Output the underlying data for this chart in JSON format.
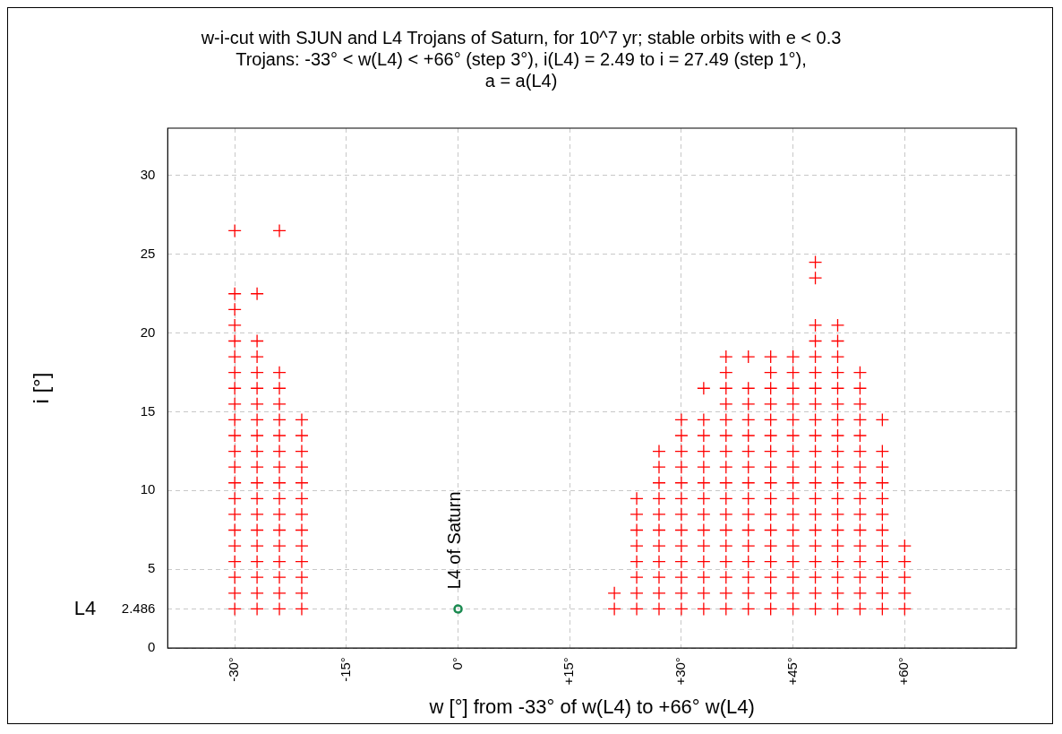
{
  "chart_data": {
    "type": "scatter",
    "title": "w-i-cut with SJUN and L4 Trojans of Saturn, for 10^7 yr; stable orbits with e < 0.3\nTrojans: -33° < w(L4) < +66° (step 3°), i(L4) = 2.49 to i = 27.49 (step 1°),\na = a(L4)",
    "xlabel": "w [°] from -33° of w(L4) to +66° w(L4)",
    "ylabel": "i [°]",
    "xlim": [
      -39,
      75
    ],
    "xticks": [
      {
        "value": -30,
        "label": "-30°"
      },
      {
        "value": -15,
        "label": "-15°"
      },
      {
        "value": 0,
        "label": "0°"
      },
      {
        "value": 15,
        "label": "+15°"
      },
      {
        "value": 30,
        "label": "+30°"
      },
      {
        "value": 45,
        "label": "+45°"
      },
      {
        "value": 60,
        "label": "+60°"
      }
    ],
    "ylim": [
      0,
      33
    ],
    "yticks": [
      0,
      2.486,
      5,
      10,
      15,
      20,
      25,
      30
    ],
    "grid": true,
    "legend": false,
    "annotations": [
      "L4",
      {
        "text": "L4 of Saturn",
        "x": 0,
        "y": 2.486
      }
    ],
    "series": [
      {
        "color": "#ff0000",
        "marker": "cross",
        "x": [
          -30,
          -30,
          -30,
          -30,
          -30,
          -30,
          -30,
          -30,
          -30,
          -30,
          -30,
          -30,
          -30,
          -30,
          -30,
          -30,
          -30,
          -30,
          -30,
          -30,
          -30,
          -30
        ],
        "values": [
          2.49,
          3.49,
          4.49,
          5.49,
          6.49,
          7.49,
          8.49,
          9.49,
          10.49,
          11.49,
          12.49,
          13.49,
          14.49,
          15.49,
          16.49,
          17.49,
          18.49,
          19.49,
          20.49,
          21.49,
          22.49,
          26.49
        ]
      },
      {
        "color": "#ff0000",
        "marker": "cross",
        "x": [
          -27,
          -27,
          -27,
          -27,
          -27,
          -27,
          -27,
          -27,
          -27,
          -27,
          -27,
          -27,
          -27,
          -27,
          -27,
          -27,
          -27,
          -27,
          -27
        ],
        "values": [
          2.49,
          3.49,
          4.49,
          5.49,
          6.49,
          7.49,
          8.49,
          9.49,
          10.49,
          11.49,
          12.49,
          13.49,
          14.49,
          15.49,
          16.49,
          17.49,
          18.49,
          19.49,
          22.49
        ]
      },
      {
        "color": "#ff0000",
        "marker": "cross",
        "x": [
          -24,
          -24,
          -24,
          -24,
          -24,
          -24,
          -24,
          -24,
          -24,
          -24,
          -24,
          -24,
          -24,
          -24,
          -24,
          -24,
          -24
        ],
        "values": [
          2.49,
          3.49,
          4.49,
          5.49,
          6.49,
          7.49,
          8.49,
          9.49,
          10.49,
          11.49,
          12.49,
          13.49,
          14.49,
          15.49,
          16.49,
          17.49,
          26.49
        ]
      },
      {
        "color": "#ff0000",
        "marker": "cross",
        "x": [
          -21,
          -21,
          -21,
          -21,
          -21,
          -21,
          -21,
          -21,
          -21,
          -21,
          -21,
          -21,
          -21
        ],
        "values": [
          2.49,
          3.49,
          4.49,
          5.49,
          6.49,
          7.49,
          8.49,
          9.49,
          10.49,
          11.49,
          12.49,
          13.49,
          14.49
        ]
      },
      {
        "color": "#ff0000",
        "marker": "cross",
        "x": [
          21,
          21
        ],
        "values": [
          2.49,
          3.49
        ]
      },
      {
        "color": "#ff0000",
        "marker": "cross",
        "x": [
          24,
          24,
          24,
          24,
          24,
          24,
          24,
          24
        ],
        "values": [
          2.49,
          3.49,
          4.49,
          5.49,
          6.49,
          7.49,
          8.49,
          9.49
        ]
      },
      {
        "color": "#ff0000",
        "marker": "cross",
        "x": [
          27,
          27,
          27,
          27,
          27,
          27,
          27,
          27,
          27,
          27,
          27
        ],
        "values": [
          2.49,
          3.49,
          4.49,
          5.49,
          6.49,
          7.49,
          8.49,
          9.49,
          10.49,
          11.49,
          12.49
        ]
      },
      {
        "color": "#ff0000",
        "marker": "cross",
        "x": [
          30,
          30,
          30,
          30,
          30,
          30,
          30,
          30,
          30,
          30,
          30,
          30,
          30
        ],
        "values": [
          2.49,
          3.49,
          4.49,
          5.49,
          6.49,
          7.49,
          8.49,
          9.49,
          10.49,
          11.49,
          12.49,
          13.49,
          14.49
        ]
      },
      {
        "color": "#ff0000",
        "marker": "cross",
        "x": [
          33,
          33,
          33,
          33,
          33,
          33,
          33,
          33,
          33,
          33,
          33,
          33,
          33,
          33
        ],
        "values": [
          2.49,
          3.49,
          4.49,
          5.49,
          6.49,
          7.49,
          8.49,
          9.49,
          10.49,
          11.49,
          12.49,
          13.49,
          14.49,
          16.49
        ]
      },
      {
        "color": "#ff0000",
        "marker": "cross",
        "x": [
          36,
          36,
          36,
          36,
          36,
          36,
          36,
          36,
          36,
          36,
          36,
          36,
          36,
          36,
          36,
          36,
          36
        ],
        "values": [
          2.49,
          3.49,
          4.49,
          5.49,
          6.49,
          7.49,
          8.49,
          9.49,
          10.49,
          11.49,
          12.49,
          13.49,
          14.49,
          15.49,
          16.49,
          17.49,
          18.49
        ]
      },
      {
        "color": "#ff0000",
        "marker": "cross",
        "x": [
          39,
          39,
          39,
          39,
          39,
          39,
          39,
          39,
          39,
          39,
          39,
          39,
          39,
          39,
          39,
          39
        ],
        "values": [
          2.49,
          3.49,
          4.49,
          5.49,
          6.49,
          7.49,
          8.49,
          9.49,
          10.49,
          11.49,
          12.49,
          13.49,
          14.49,
          15.49,
          16.49,
          18.49
        ]
      },
      {
        "color": "#ff0000",
        "marker": "cross",
        "x": [
          42,
          42,
          42,
          42,
          42,
          42,
          42,
          42,
          42,
          42,
          42,
          42,
          42,
          42,
          42,
          42,
          42
        ],
        "values": [
          2.49,
          3.49,
          4.49,
          5.49,
          6.49,
          7.49,
          8.49,
          9.49,
          10.49,
          11.49,
          12.49,
          13.49,
          14.49,
          15.49,
          16.49,
          17.49,
          18.49
        ]
      },
      {
        "color": "#ff0000",
        "marker": "cross",
        "x": [
          45,
          45,
          45,
          45,
          45,
          45,
          45,
          45,
          45,
          45,
          45,
          45,
          45,
          45,
          45,
          45,
          45
        ],
        "values": [
          2.49,
          3.49,
          4.49,
          5.49,
          6.49,
          7.49,
          8.49,
          9.49,
          10.49,
          11.49,
          12.49,
          13.49,
          14.49,
          15.49,
          16.49,
          17.49,
          18.49
        ]
      },
      {
        "color": "#ff0000",
        "marker": "cross",
        "x": [
          48,
          48,
          48,
          48,
          48,
          48,
          48,
          48,
          48,
          48,
          48,
          48,
          48,
          48,
          48,
          48,
          48,
          48,
          48,
          48,
          48
        ],
        "values": [
          2.49,
          3.49,
          4.49,
          5.49,
          6.49,
          7.49,
          8.49,
          9.49,
          10.49,
          11.49,
          12.49,
          13.49,
          14.49,
          15.49,
          16.49,
          17.49,
          18.49,
          19.49,
          20.49,
          23.49,
          24.49
        ]
      },
      {
        "color": "#ff0000",
        "marker": "cross",
        "x": [
          51,
          51,
          51,
          51,
          51,
          51,
          51,
          51,
          51,
          51,
          51,
          51,
          51,
          51,
          51,
          51,
          51,
          51,
          51
        ],
        "values": [
          2.49,
          3.49,
          4.49,
          5.49,
          6.49,
          7.49,
          8.49,
          9.49,
          10.49,
          11.49,
          12.49,
          13.49,
          14.49,
          15.49,
          16.49,
          17.49,
          18.49,
          19.49,
          20.49
        ]
      },
      {
        "color": "#ff0000",
        "marker": "cross",
        "x": [
          54,
          54,
          54,
          54,
          54,
          54,
          54,
          54,
          54,
          54,
          54,
          54,
          54,
          54,
          54,
          54
        ],
        "values": [
          2.49,
          3.49,
          4.49,
          5.49,
          6.49,
          7.49,
          8.49,
          9.49,
          10.49,
          11.49,
          12.49,
          13.49,
          14.49,
          15.49,
          16.49,
          17.49
        ]
      },
      {
        "color": "#ff0000",
        "marker": "cross",
        "x": [
          57,
          57,
          57,
          57,
          57,
          57,
          57,
          57,
          57,
          57,
          57,
          57
        ],
        "values": [
          2.49,
          3.49,
          4.49,
          5.49,
          6.49,
          7.49,
          8.49,
          9.49,
          10.49,
          11.49,
          12.49,
          14.49
        ]
      },
      {
        "color": "#ff0000",
        "marker": "cross",
        "x": [
          60,
          60,
          60,
          60,
          60
        ],
        "values": [
          2.49,
          3.49,
          4.49,
          5.49,
          6.49
        ]
      },
      {
        "color": "#1a8a50",
        "marker": "circle",
        "x": [
          0
        ],
        "values": [
          2.486
        ]
      }
    ]
  }
}
